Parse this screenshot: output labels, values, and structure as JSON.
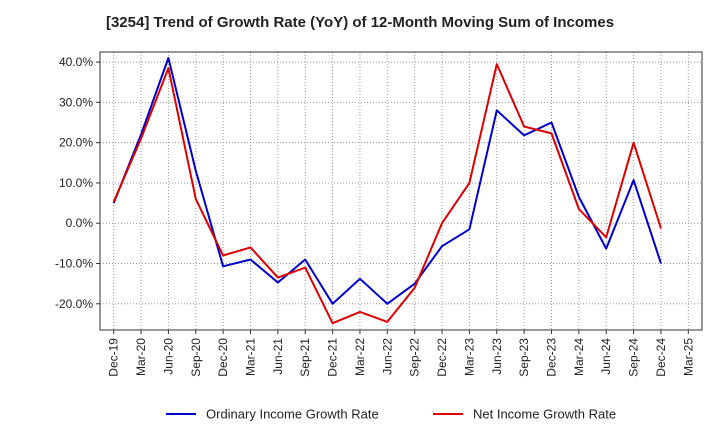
{
  "chart_data": {
    "type": "line",
    "title": "[3254]  Trend of Growth Rate (YoY) of 12-Month Moving Sum of Incomes",
    "xlabel": "",
    "ylabel": "",
    "x": [
      "Dec-19",
      "Mar-20",
      "Jun-20",
      "Sep-20",
      "Dec-20",
      "Mar-21",
      "Jun-21",
      "Sep-21",
      "Dec-21",
      "Mar-22",
      "Jun-22",
      "Sep-22",
      "Dec-22",
      "Mar-23",
      "Jun-23",
      "Sep-23",
      "Dec-23",
      "Mar-24",
      "Jun-24",
      "Sep-24",
      "Dec-24",
      "Mar-25"
    ],
    "x_tick_labels": [
      "Dec-19",
      "Mar-20",
      "Jun-20",
      "Sep-20",
      "Dec-20",
      "Mar-21",
      "Jun-21",
      "Sep-21",
      "Dec-21",
      "Mar-22",
      "Jun-22",
      "Sep-22",
      "Dec-22",
      "Mar-23",
      "Jun-23",
      "Sep-23",
      "Dec-23",
      "Mar-24",
      "Jun-24",
      "Sep-24",
      "Dec-24",
      "Mar-25"
    ],
    "ylim": [
      -26.5,
      42.5
    ],
    "y_ticks": [
      40,
      30,
      20,
      10,
      0,
      -10,
      -20
    ],
    "y_tick_labels": [
      "40.0%",
      "30.0%",
      "20.0%",
      "10.0%",
      "0.0%",
      "-10.0%",
      "-20.0%"
    ],
    "grid": true,
    "legend_position": "bottom",
    "series": [
      {
        "name": "Ordinary Income Growth Rate",
        "color": "#0000cc",
        "values": [
          5.0,
          22.0,
          41.0,
          13.0,
          -10.7,
          -9.0,
          -14.7,
          -9.0,
          -20.0,
          -13.8,
          -20.0,
          -15.0,
          -5.7,
          -1.5,
          28.0,
          21.8,
          25.0,
          6.5,
          -6.3,
          10.7,
          -10.0,
          null
        ]
      },
      {
        "name": "Net Income Growth Rate",
        "color": "#dd0000",
        "values": [
          5.3,
          21.0,
          38.5,
          6.0,
          -8.0,
          -6.0,
          -13.5,
          -11.0,
          -24.8,
          -22.0,
          -24.5,
          -16.0,
          0.0,
          10.0,
          39.5,
          24.0,
          22.3,
          3.5,
          -3.5,
          20.0,
          -1.3,
          null
        ]
      }
    ]
  }
}
